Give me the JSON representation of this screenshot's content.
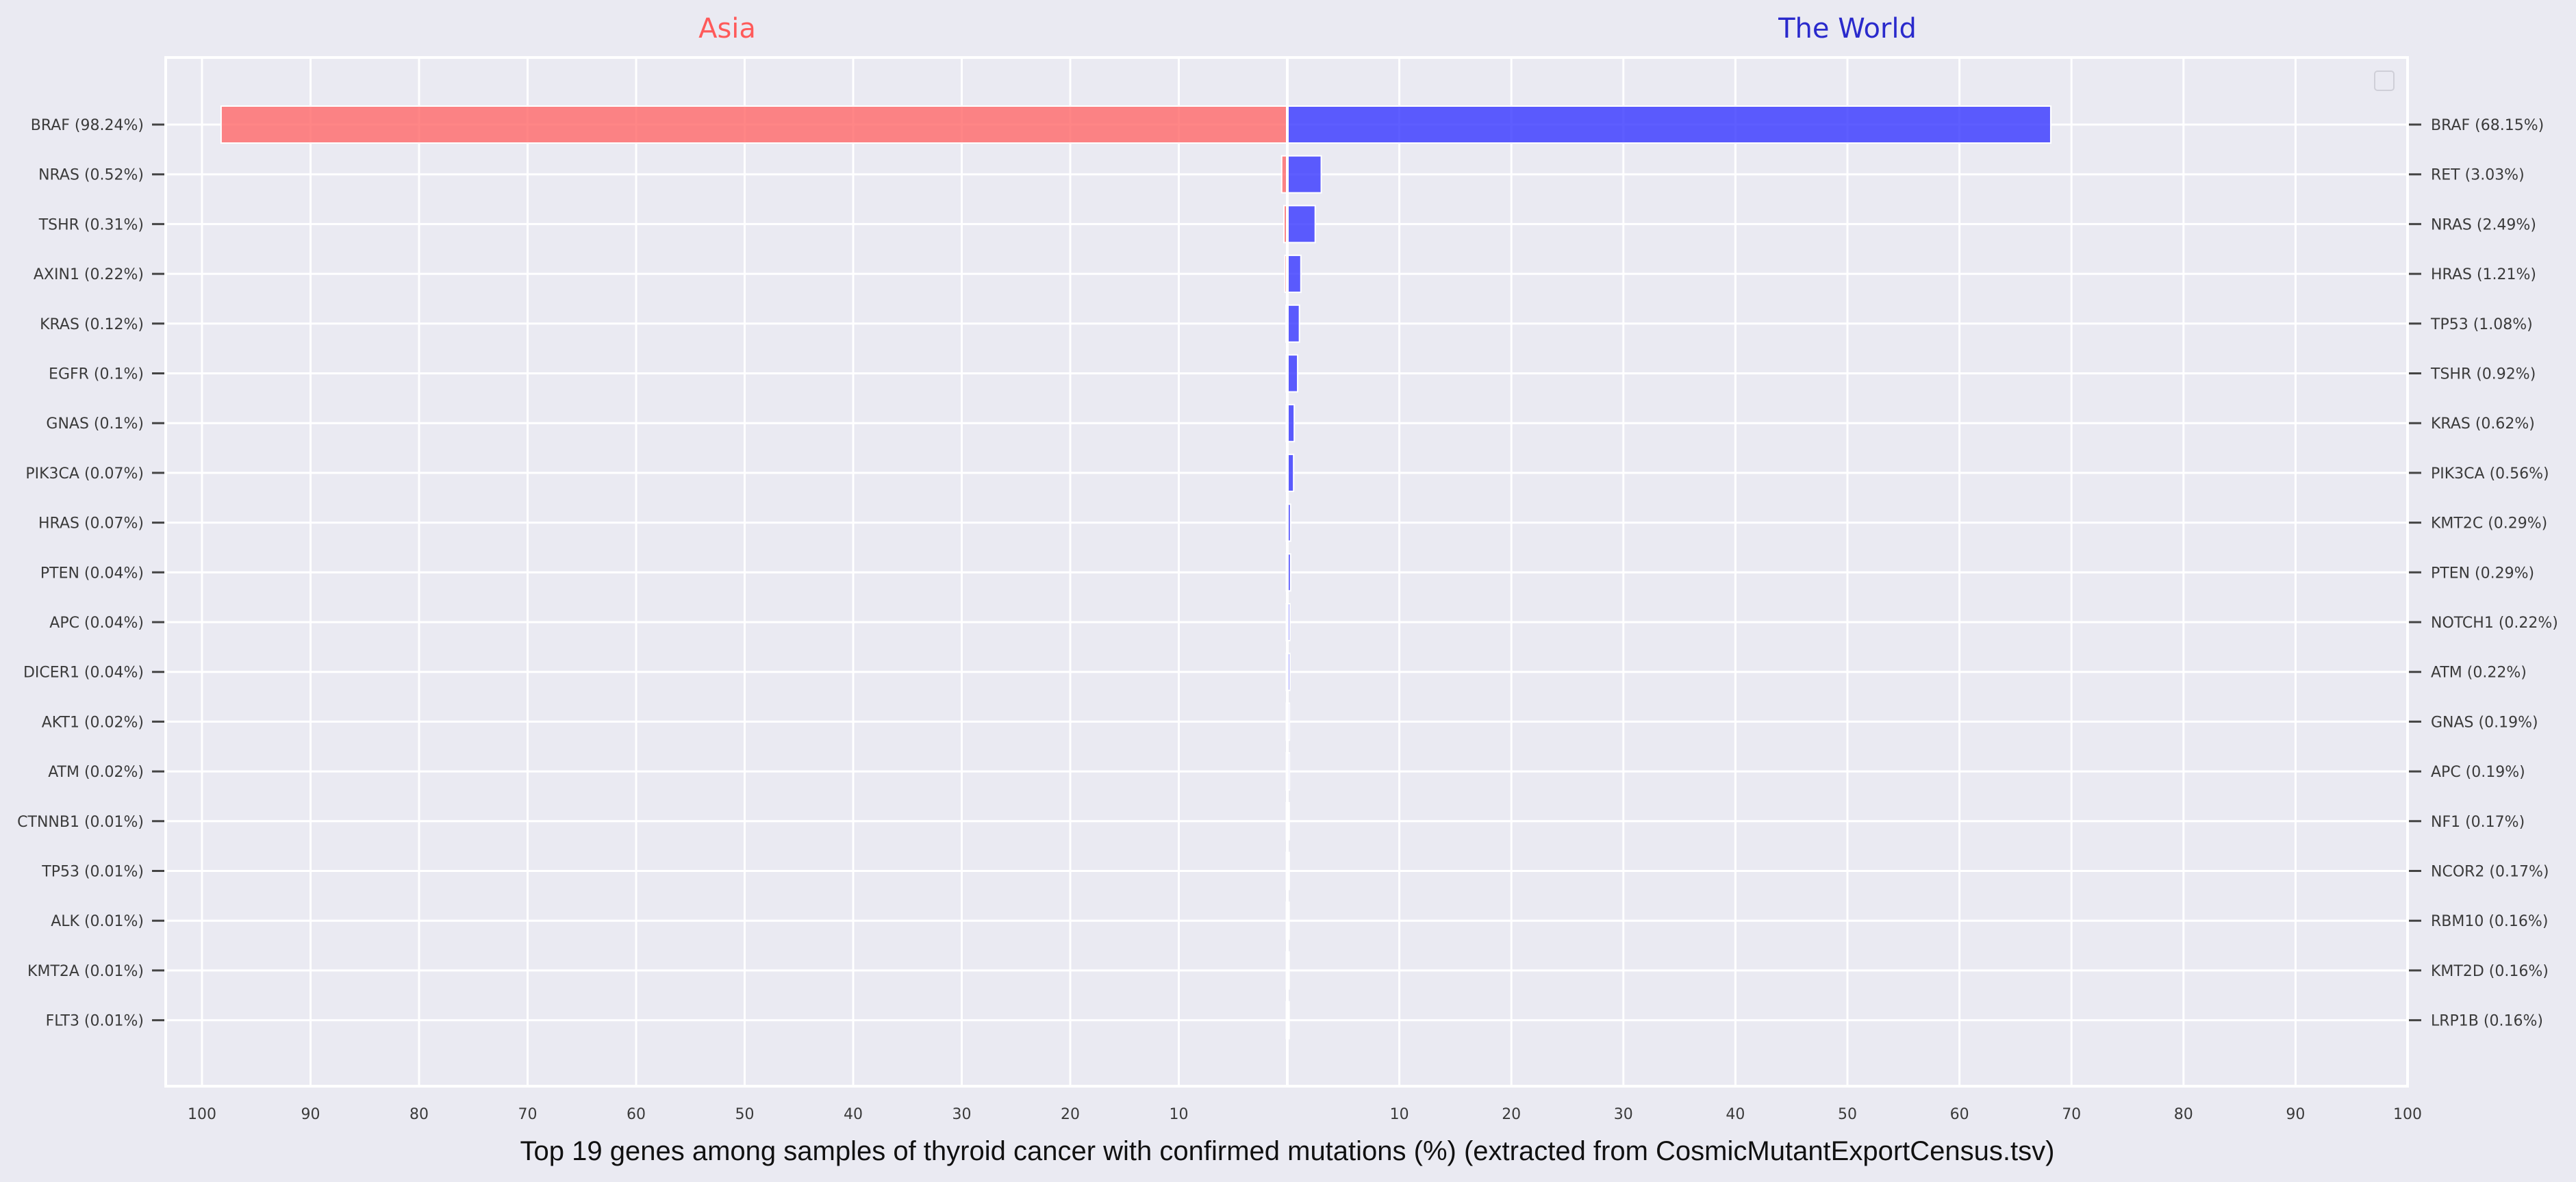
{
  "chart_data": {
    "type": "bar",
    "orientation": "horizontal-back-to-back",
    "xlabel": "Top 19 genes among samples of thyroid cancer with confirmed mutations (%) (extracted from CosmicMutantExportCensus.tsv)",
    "xlim": [
      0,
      100
    ],
    "xticks": [
      10,
      20,
      30,
      40,
      50,
      60,
      70,
      80,
      90,
      100
    ],
    "xtick_labels_left": [
      "100",
      "90",
      "80",
      "70",
      "60",
      "50",
      "40",
      "30",
      "20",
      "10"
    ],
    "xtick_labels_right": [
      "10",
      "20",
      "30",
      "40",
      "50",
      "60",
      "70",
      "80",
      "90",
      "100"
    ],
    "grid": true,
    "legend": "top-right (empty)",
    "series": [
      {
        "name": "Asia",
        "side": "left",
        "color": "#ff6b6b",
        "categories": [
          "BRAF (98.24%)",
          "NRAS (0.52%)",
          "TSHR (0.31%)",
          "AXIN1 (0.22%)",
          "KRAS (0.12%)",
          "EGFR (0.1%)",
          "GNAS (0.1%)",
          "PIK3CA (0.07%)",
          "HRAS (0.07%)",
          "PTEN (0.04%)",
          "APC (0.04%)",
          "DICER1 (0.04%)",
          "AKT1 (0.02%)",
          "ATM (0.02%)",
          "CTNNB1 (0.01%)",
          "TP53 (0.01%)",
          "ALK (0.01%)",
          "KMT2A (0.01%)",
          "FLT3 (0.01%)"
        ],
        "values": [
          98.24,
          0.52,
          0.31,
          0.22,
          0.12,
          0.1,
          0.1,
          0.07,
          0.07,
          0.04,
          0.04,
          0.04,
          0.02,
          0.02,
          0.01,
          0.01,
          0.01,
          0.01,
          0.01
        ]
      },
      {
        "name": "The World",
        "side": "right",
        "color": "#3b3bff",
        "categories": [
          "BRAF (68.15%)",
          "RET (3.03%)",
          "NRAS (2.49%)",
          "HRAS (1.21%)",
          "TP53 (1.08%)",
          "TSHR (0.92%)",
          "KRAS (0.62%)",
          "PIK3CA (0.56%)",
          "KMT2C (0.29%)",
          "PTEN (0.29%)",
          "NOTCH1 (0.22%)",
          "ATM (0.22%)",
          "GNAS (0.19%)",
          "APC (0.19%)",
          "NF1 (0.17%)",
          "NCOR2 (0.17%)",
          "RBM10 (0.16%)",
          "KMT2D (0.16%)",
          "LRP1B (0.16%)"
        ],
        "values": [
          68.15,
          3.03,
          2.49,
          1.21,
          1.08,
          0.92,
          0.62,
          0.56,
          0.29,
          0.29,
          0.22,
          0.22,
          0.19,
          0.19,
          0.17,
          0.17,
          0.16,
          0.16,
          0.16
        ]
      }
    ]
  }
}
